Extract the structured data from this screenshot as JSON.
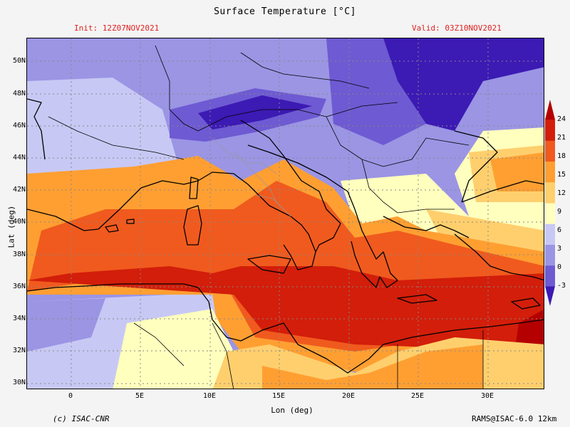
{
  "header": {
    "title": "Surface Temperature [°C]",
    "init": "Init: 12Z07NOV2021",
    "valid": "Valid: 03Z10NOV2021"
  },
  "axes": {
    "xlabel": "Lon (deg)",
    "ylabel": "Lat (deg)",
    "lat_ticks": [
      "50N",
      "48N",
      "46N",
      "44N",
      "42N",
      "40N",
      "38N",
      "36N",
      "34N",
      "32N",
      "30N"
    ],
    "lon_ticks": [
      "0",
      "5E",
      "10E",
      "15E",
      "20E",
      "25E",
      "30E"
    ],
    "lon_range": [
      -3.2,
      34
    ],
    "lat_range": [
      29.7,
      51.5
    ]
  },
  "colorbar": {
    "levels": [
      -3,
      0,
      3,
      6,
      9,
      12,
      15,
      18,
      21,
      24
    ],
    "labels": [
      "24",
      "21",
      "18",
      "15",
      "12",
      "9",
      "6",
      "3",
      "0",
      "-3"
    ],
    "colors": [
      "#3c1ab4",
      "#6e5ad2",
      "#9b95e4",
      "#c8c8f5",
      "#ffffbe",
      "#ffcf6e",
      "#ff9f32",
      "#f05a1e",
      "#d21e0a",
      "#b40000"
    ]
  },
  "footer": {
    "copyright": "(c) ISAC-CNR",
    "model": "RAMS@ISAC-6.0 12km"
  }
}
